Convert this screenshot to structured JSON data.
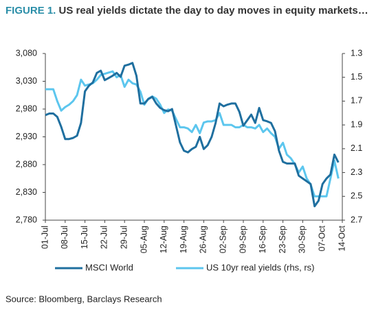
{
  "chart_data": {
    "type": "line",
    "label": "FIGURE 1.",
    "title": "US real yields dictate the day to day moves in equity markets…",
    "source": "Source: Bloomberg, Barclays Research",
    "categories": [
      "01-Jul",
      null,
      null,
      null,
      null,
      "08-Jul",
      null,
      null,
      null,
      null,
      "15-Jul",
      null,
      null,
      null,
      null,
      "22-Jul",
      null,
      null,
      null,
      null,
      "29-Jul",
      null,
      null,
      null,
      null,
      "05-Aug",
      null,
      null,
      null,
      null,
      "12-Aug",
      null,
      null,
      null,
      null,
      "19-Aug",
      null,
      null,
      null,
      null,
      "26-Aug",
      null,
      null,
      null,
      null,
      "02-Sep",
      null,
      null,
      null,
      null,
      "09-Sep",
      null,
      null,
      null,
      null,
      "16-Sep",
      null,
      null,
      null,
      null,
      "23-Sep",
      null,
      null,
      null,
      null,
      "30-Sep",
      null,
      null,
      null,
      null,
      "07-Oct",
      null,
      null,
      null,
      null,
      "14-Oct"
    ],
    "series": [
      {
        "name": "MSCI World",
        "color": "#1f6f9f",
        "axis": "y",
        "values": [
          2969,
          2972,
          2972,
          2966,
          2948,
          2926,
          2926,
          2928,
          2932,
          2955,
          3012,
          3022,
          3028,
          3045,
          3049,
          3032,
          3036,
          3040,
          3045,
          3038,
          3058,
          3060,
          3063,
          3040,
          2990,
          2990,
          2998,
          3002,
          2990,
          2982,
          2978,
          2976,
          2980,
          2950,
          2920,
          2905,
          2902,
          2908,
          2912,
          2930,
          2908,
          2915,
          2930,
          2955,
          2990,
          2985,
          2988,
          2990,
          2990,
          2975,
          2950,
          2960,
          2970,
          2955,
          2982,
          2960,
          2958,
          2955,
          2940,
          2905,
          2885,
          2882,
          2882,
          2882,
          2860,
          2855,
          2850,
          2845,
          2805,
          2815,
          2845,
          2855,
          2862,
          2898,
          2884,
          null
        ]
      },
      {
        "name": "US 10yr real yields (rhs, rs)",
        "color": "#5cc6ee",
        "axis": "y2",
        "values": [
          1.6,
          1.6,
          1.6,
          1.7,
          1.78,
          1.75,
          1.73,
          1.7,
          1.65,
          1.52,
          1.57,
          1.56,
          1.55,
          1.52,
          1.48,
          1.47,
          1.46,
          1.45,
          1.5,
          1.48,
          1.58,
          1.52,
          1.55,
          1.56,
          1.62,
          1.73,
          1.68,
          1.66,
          1.68,
          1.73,
          1.8,
          1.77,
          1.78,
          1.85,
          1.92,
          1.92,
          1.93,
          1.96,
          1.9,
          1.97,
          1.88,
          1.87,
          1.87,
          1.86,
          1.8,
          1.9,
          1.9,
          1.9,
          1.92,
          1.92,
          1.9,
          1.92,
          1.92,
          1.93,
          1.9,
          1.96,
          1.93,
          1.97,
          2.0,
          2.1,
          2.05,
          2.15,
          2.18,
          2.23,
          2.3,
          2.25,
          2.35,
          2.4,
          2.5,
          2.5,
          2.5,
          2.5,
          2.35,
          2.2,
          2.35,
          null
        ]
      }
    ],
    "ylim": [
      2780,
      3080
    ],
    "yticks": [
      {
        "value": 2780,
        "label": "2,780"
      },
      {
        "value": 2830,
        "label": "2,830"
      },
      {
        "value": 2880,
        "label": "2,880"
      },
      {
        "value": 2930,
        "label": "2,930"
      },
      {
        "value": 2980,
        "label": "2,980"
      },
      {
        "value": 3030,
        "label": "3,030"
      },
      {
        "value": 3080,
        "label": "3,080"
      }
    ],
    "y2lim": [
      2.7,
      1.3
    ],
    "y2ticks": [
      1.3,
      1.5,
      1.7,
      1.9,
      2.1,
      2.3,
      2.5,
      2.7
    ],
    "grid": false
  }
}
